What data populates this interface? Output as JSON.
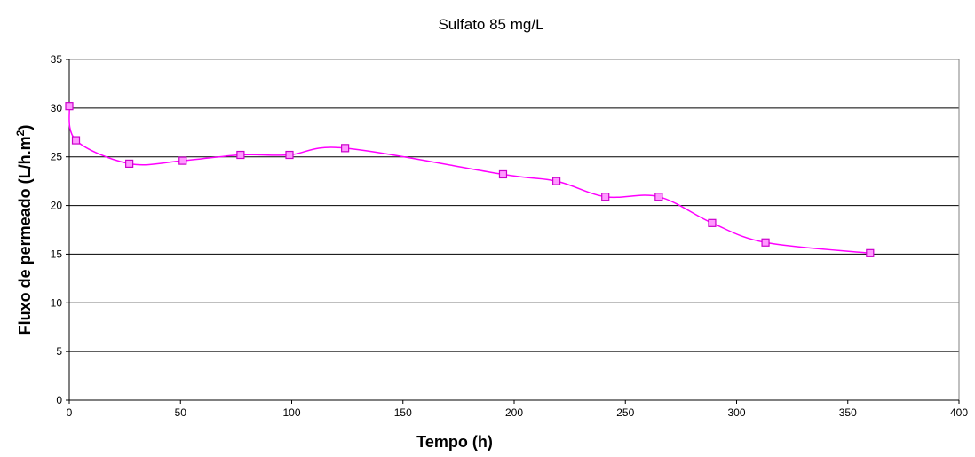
{
  "chart_data": {
    "type": "line",
    "title": "Sulfato 85 mg/L",
    "xlabel": "Tempo (h)",
    "ylabel_main": "Fluxo de permeado (L/h.m",
    "ylabel_sup": "2",
    "ylabel_end": ")",
    "xlim": [
      0,
      400
    ],
    "ylim": [
      0,
      35
    ],
    "xticks": [
      0,
      50,
      100,
      150,
      200,
      250,
      300,
      350,
      400
    ],
    "yticks": [
      0,
      5,
      10,
      15,
      20,
      25,
      30,
      35
    ],
    "grid": "horizontal",
    "smooth": true,
    "colors": {
      "line": "#ff00ff",
      "marker_fill": "#ff99ff",
      "marker_stroke": "#cc00cc",
      "grid": "#000000"
    },
    "series": [
      {
        "x": [
          0,
          3,
          27,
          51,
          77,
          99,
          124,
          195,
          219,
          241,
          265,
          289,
          313,
          360
        ],
        "y": [
          30.2,
          26.7,
          24.3,
          24.6,
          25.2,
          25.2,
          25.9,
          23.2,
          22.5,
          20.9,
          20.9,
          18.2,
          16.2,
          15.1
        ]
      }
    ]
  }
}
